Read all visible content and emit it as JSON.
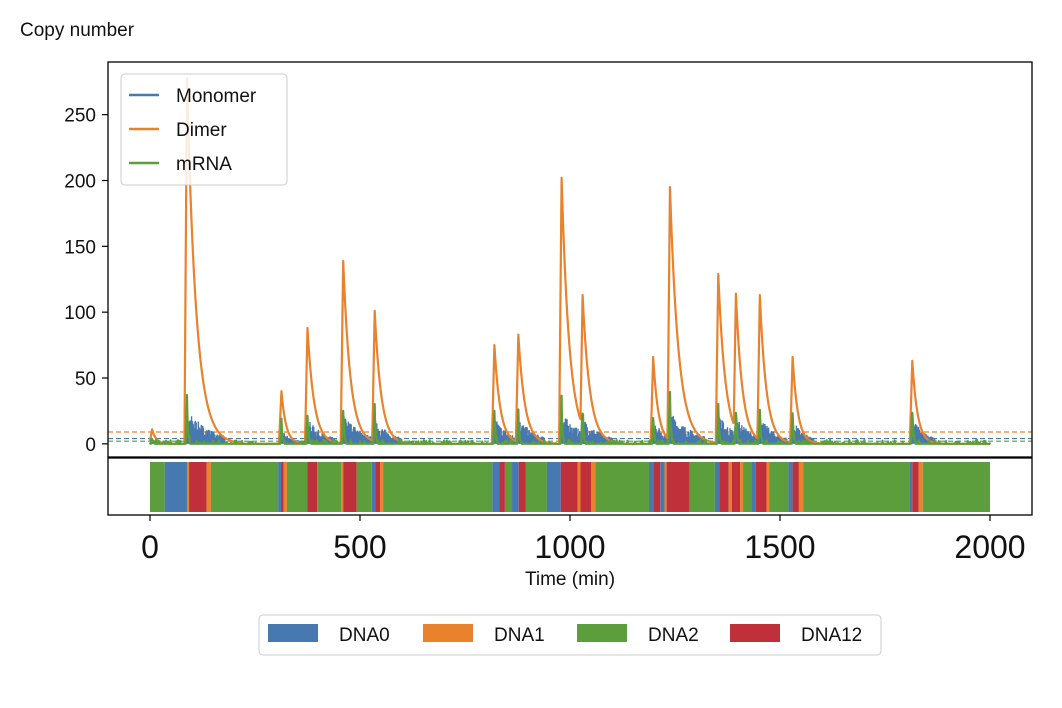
{
  "chart_data": [
    {
      "type": "line",
      "ylabel": "Copy number",
      "xlim": [
        -100,
        2100
      ],
      "ylim": [
        -10,
        290
      ],
      "yticks": [
        0,
        50,
        100,
        150,
        200,
        250
      ],
      "grid": false,
      "legend": {
        "position": "top-left",
        "entries": [
          {
            "name": "Monomer",
            "color": "#4878b0"
          },
          {
            "name": "Dimer",
            "color": "#e8822c"
          },
          {
            "name": "mRNA",
            "color": "#5c9e3c"
          }
        ]
      },
      "reference_lines": [
        {
          "series": "Dimer",
          "y": 9,
          "style": "dashed",
          "color": "#e8822c"
        },
        {
          "series": "Monomer",
          "y": 4,
          "style": "dashed",
          "color": "#4878b0"
        },
        {
          "series": "mRNA",
          "y": 2,
          "style": "dashed",
          "color": "#5c9e3c"
        }
      ],
      "bursts": [
        {
          "t": 5,
          "dimer": 11,
          "monomer": 4,
          "mrna": 4,
          "len": 30
        },
        {
          "t": 88,
          "dimer": 278,
          "monomer": 26,
          "mrna": 46,
          "len": 70
        },
        {
          "t": 313,
          "dimer": 40,
          "monomer": 10,
          "mrna": 20,
          "len": 35
        },
        {
          "t": 375,
          "dimer": 88,
          "monomer": 19,
          "mrna": 33,
          "len": 50
        },
        {
          "t": 460,
          "dimer": 139,
          "monomer": 23,
          "mrna": 36,
          "len": 55
        },
        {
          "t": 535,
          "dimer": 101,
          "monomer": 19,
          "mrna": 34,
          "len": 50
        },
        {
          "t": 820,
          "dimer": 75,
          "monomer": 20,
          "mrna": 32,
          "len": 45
        },
        {
          "t": 877,
          "dimer": 83,
          "monomer": 20,
          "mrna": 33,
          "len": 50
        },
        {
          "t": 980,
          "dimer": 202,
          "monomer": 24,
          "mrna": 40,
          "len": 60
        },
        {
          "t": 1030,
          "dimer": 113,
          "monomer": 20,
          "mrna": 38,
          "len": 55
        },
        {
          "t": 1198,
          "dimer": 66,
          "monomer": 18,
          "mrna": 31,
          "len": 40
        },
        {
          "t": 1238,
          "dimer": 195,
          "monomer": 25,
          "mrna": 45,
          "len": 65
        },
        {
          "t": 1353,
          "dimer": 129,
          "monomer": 22,
          "mrna": 35,
          "len": 55
        },
        {
          "t": 1395,
          "dimer": 114,
          "monomer": 20,
          "mrna": 34,
          "len": 50
        },
        {
          "t": 1452,
          "dimer": 113,
          "monomer": 20,
          "mrna": 33,
          "len": 50
        },
        {
          "t": 1530,
          "dimer": 66,
          "monomer": 18,
          "mrna": 30,
          "len": 40
        },
        {
          "t": 1815,
          "dimer": 63,
          "monomer": 20,
          "mrna": 36,
          "len": 40
        }
      ]
    },
    {
      "type": "bar",
      "xlabel": "Time (min)",
      "xticks": [
        0,
        500,
        1000,
        1500,
        2000
      ],
      "legend": {
        "position": "bottom-center",
        "entries": [
          {
            "name": "DNA0",
            "color": "#4878b0"
          },
          {
            "name": "DNA1",
            "color": "#e8822c"
          },
          {
            "name": "DNA2",
            "color": "#5c9e3c"
          },
          {
            "name": "DNA12",
            "color": "#c0303a"
          }
        ]
      },
      "segments": [
        [
          "DNA2",
          0,
          35
        ],
        [
          "DNA0",
          35,
          88
        ],
        [
          "DNA1",
          88,
          93
        ],
        [
          "DNA12",
          93,
          135
        ],
        [
          "DNA1",
          135,
          145
        ],
        [
          "DNA2",
          145,
          305
        ],
        [
          "DNA0",
          305,
          312
        ],
        [
          "DNA12",
          312,
          318
        ],
        [
          "DNA1",
          318,
          326
        ],
        [
          "DNA2",
          326,
          375
        ],
        [
          "DNA12",
          375,
          398
        ],
        [
          "DNA2",
          398,
          455
        ],
        [
          "DNA1",
          455,
          460
        ],
        [
          "DNA12",
          460,
          492
        ],
        [
          "DNA2",
          492,
          528
        ],
        [
          "DNA0",
          528,
          536
        ],
        [
          "DNA12",
          536,
          548
        ],
        [
          "DNA1",
          548,
          555
        ],
        [
          "DNA2",
          555,
          815
        ],
        [
          "DNA0",
          815,
          832
        ],
        [
          "DNA12",
          832,
          845
        ],
        [
          "DNA2",
          845,
          862
        ],
        [
          "DNA0",
          862,
          878
        ],
        [
          "DNA12",
          878,
          895
        ],
        [
          "DNA2",
          895,
          945
        ],
        [
          "DNA0",
          945,
          978
        ],
        [
          "DNA12",
          978,
          1018
        ],
        [
          "DNA1",
          1018,
          1025
        ],
        [
          "DNA12",
          1025,
          1050
        ],
        [
          "DNA1",
          1050,
          1060
        ],
        [
          "DNA2",
          1060,
          1188
        ],
        [
          "DNA0",
          1188,
          1198
        ],
        [
          "DNA12",
          1198,
          1215
        ],
        [
          "DNA0",
          1215,
          1225
        ],
        [
          "DNA1",
          1225,
          1230
        ],
        [
          "DNA12",
          1230,
          1285
        ],
        [
          "DNA2",
          1285,
          1345
        ],
        [
          "DNA0",
          1345,
          1355
        ],
        [
          "DNA12",
          1355,
          1378
        ],
        [
          "DNA1",
          1378,
          1385
        ],
        [
          "DNA12",
          1385,
          1405
        ],
        [
          "DNA1",
          1405,
          1412
        ],
        [
          "DNA2",
          1412,
          1432
        ],
        [
          "DNA0",
          1432,
          1442
        ],
        [
          "DNA12",
          1442,
          1468
        ],
        [
          "DNA1",
          1468,
          1475
        ],
        [
          "DNA2",
          1475,
          1520
        ],
        [
          "DNA0",
          1520,
          1530
        ],
        [
          "DNA12",
          1530,
          1545
        ],
        [
          "DNA1",
          1545,
          1555
        ],
        [
          "DNA2",
          1555,
          1808
        ],
        [
          "DNA0",
          1808,
          1815
        ],
        [
          "DNA12",
          1815,
          1830
        ],
        [
          "DNA1",
          1830,
          1840
        ],
        [
          "DNA2",
          1840,
          2000
        ]
      ]
    }
  ]
}
